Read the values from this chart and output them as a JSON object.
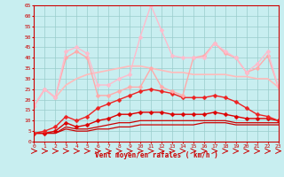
{
  "x": [
    0,
    1,
    2,
    3,
    4,
    5,
    6,
    7,
    8,
    9,
    10,
    11,
    12,
    13,
    14,
    15,
    16,
    17,
    18,
    19,
    20,
    21,
    22,
    23
  ],
  "lines": [
    {
      "values": [
        4,
        4,
        4,
        6,
        5,
        5,
        6,
        6,
        7,
        7,
        8,
        8,
        8,
        8,
        8,
        8,
        9,
        9,
        9,
        8,
        8,
        8,
        8,
        8
      ],
      "color": "#cc0000",
      "marker": null,
      "linewidth": 0.9,
      "markersize": 0
    },
    {
      "values": [
        4,
        4,
        4,
        7,
        6,
        6,
        7,
        8,
        9,
        9,
        10,
        10,
        10,
        10,
        10,
        10,
        10,
        10,
        10,
        9,
        9,
        9,
        9,
        9
      ],
      "color": "#cc0000",
      "marker": null,
      "linewidth": 0.9,
      "markersize": 0
    },
    {
      "values": [
        4,
        4,
        5,
        9,
        7,
        8,
        10,
        11,
        13,
        13,
        14,
        14,
        14,
        13,
        13,
        13,
        13,
        14,
        13,
        12,
        11,
        11,
        11,
        10
      ],
      "color": "#dd0000",
      "marker": "D",
      "linewidth": 1.0,
      "markersize": 2.5
    },
    {
      "values": [
        4,
        5,
        7,
        12,
        10,
        12,
        16,
        18,
        20,
        22,
        24,
        25,
        24,
        23,
        21,
        21,
        21,
        22,
        21,
        19,
        16,
        13,
        12,
        10
      ],
      "color": "#ee2222",
      "marker": "D",
      "linewidth": 1.0,
      "markersize": 2.5
    },
    {
      "values": [
        17,
        25,
        21,
        27,
        30,
        32,
        33,
        34,
        35,
        36,
        36,
        35,
        34,
        33,
        33,
        32,
        32,
        32,
        32,
        31,
        31,
        30,
        30,
        26
      ],
      "color": "#ffbbbb",
      "marker": null,
      "linewidth": 1.2,
      "markersize": 0
    },
    {
      "values": [
        17,
        25,
        21,
        40,
        43,
        40,
        22,
        22,
        24,
        26,
        26,
        35,
        26,
        24,
        22,
        40,
        41,
        47,
        42,
        40,
        33,
        35,
        41,
        26
      ],
      "color": "#ffaaaa",
      "marker": "D",
      "linewidth": 1.0,
      "markersize": 2.5
    },
    {
      "values": [
        17,
        25,
        21,
        43,
        45,
        42,
        27,
        27,
        30,
        32,
        50,
        65,
        53,
        41,
        40,
        40,
        40,
        47,
        43,
        40,
        33,
        37,
        43,
        26
      ],
      "color": "#ffbbcc",
      "marker": "D",
      "linewidth": 1.0,
      "markersize": 2.5
    }
  ],
  "xlabel": "Vent moyen/en rafales ( km/h )",
  "xlim": [
    0,
    23
  ],
  "ylim": [
    0,
    65
  ],
  "yticks": [
    0,
    5,
    10,
    15,
    20,
    25,
    30,
    35,
    40,
    45,
    50,
    55,
    60,
    65
  ],
  "xticks": [
    0,
    1,
    2,
    3,
    4,
    5,
    6,
    7,
    8,
    9,
    10,
    11,
    12,
    13,
    14,
    15,
    16,
    17,
    18,
    19,
    20,
    21,
    22,
    23
  ],
  "background_color": "#c8eef0",
  "grid_color": "#99cccc",
  "tick_color": "#cc0000",
  "label_color": "#cc0000"
}
